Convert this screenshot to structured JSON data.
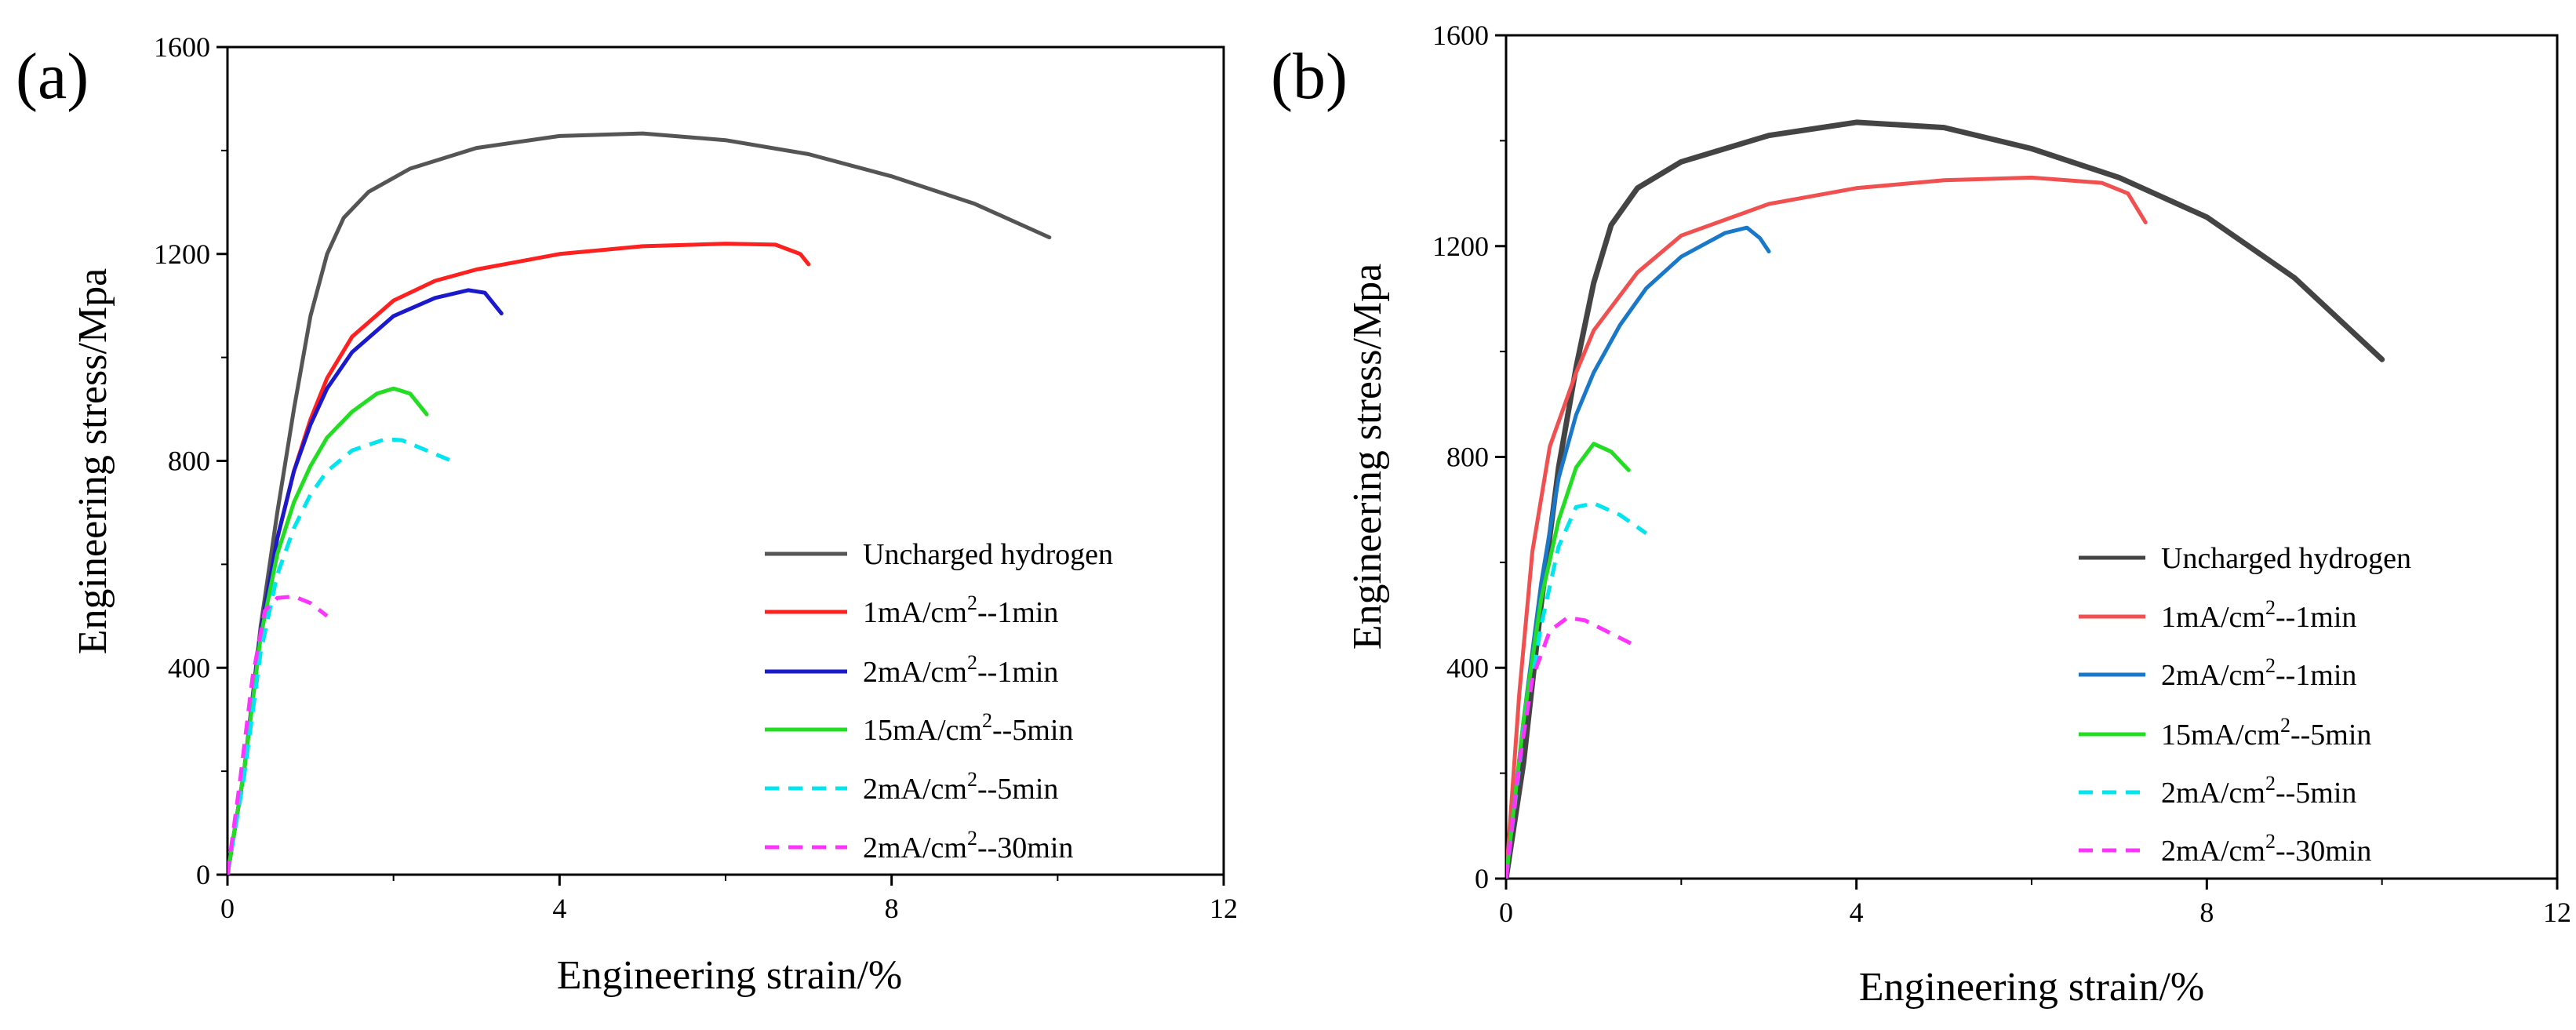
{
  "chart_data": [
    {
      "type": "line",
      "panel_label": "(a)",
      "xlabel": "Engineering strain/%",
      "ylabel": "Engineering stress/Mpa",
      "xlim": [
        0,
        12
      ],
      "ylim": [
        0,
        1600
      ],
      "xticks": [
        0,
        4,
        8,
        12
      ],
      "yticks": [
        0,
        400,
        800,
        1200,
        1600
      ],
      "legend_position": "bottom-right",
      "series": [
        {
          "name": "Uncharged hydrogen",
          "label_parts": [
            "Uncharged hydrogen"
          ],
          "color": "#555555",
          "dash": "solid",
          "points": [
            [
              0,
              0
            ],
            [
              0.2,
              200
            ],
            [
              0.4,
              480
            ],
            [
              0.6,
              700
            ],
            [
              0.8,
              900
            ],
            [
              1.0,
              1080
            ],
            [
              1.2,
              1200
            ],
            [
              1.4,
              1270
            ],
            [
              1.7,
              1320
            ],
            [
              2.2,
              1365
            ],
            [
              3.0,
              1405
            ],
            [
              4.0,
              1428
            ],
            [
              5.0,
              1433
            ],
            [
              6.0,
              1420
            ],
            [
              7.0,
              1393
            ],
            [
              8.0,
              1350
            ],
            [
              9.0,
              1297
            ],
            [
              9.9,
              1232
            ]
          ]
        },
        {
          "name": "1mA/cm2--1min",
          "label_parts": [
            "1mA/cm",
            "2",
            "--1min"
          ],
          "color": "#ff2020",
          "dash": "solid",
          "points": [
            [
              0,
              0
            ],
            [
              0.2,
              200
            ],
            [
              0.4,
              470
            ],
            [
              0.6,
              650
            ],
            [
              0.8,
              780
            ],
            [
              1.0,
              880
            ],
            [
              1.2,
              960
            ],
            [
              1.5,
              1040
            ],
            [
              2.0,
              1110
            ],
            [
              2.5,
              1148
            ],
            [
              3.0,
              1170
            ],
            [
              4.0,
              1200
            ],
            [
              5.0,
              1215
            ],
            [
              6.0,
              1220
            ],
            [
              6.6,
              1218
            ],
            [
              6.9,
              1200
            ],
            [
              7.0,
              1180
            ]
          ]
        },
        {
          "name": "2mA/cm2--1min",
          "label_parts": [
            "2mA/cm",
            "2",
            "--1min"
          ],
          "color": "#1a1acc",
          "dash": "solid",
          "points": [
            [
              0,
              0
            ],
            [
              0.2,
              200
            ],
            [
              0.4,
              470
            ],
            [
              0.6,
              650
            ],
            [
              0.8,
              780
            ],
            [
              1.0,
              870
            ],
            [
              1.2,
              940
            ],
            [
              1.5,
              1010
            ],
            [
              2.0,
              1080
            ],
            [
              2.5,
              1115
            ],
            [
              2.9,
              1130
            ],
            [
              3.1,
              1125
            ],
            [
              3.2,
              1105
            ],
            [
              3.3,
              1085
            ]
          ]
        },
        {
          "name": "15mA/cm2--5min",
          "label_parts": [
            "15mA/cm",
            "2",
            "--5min"
          ],
          "color": "#22dd22",
          "dash": "solid",
          "points": [
            [
              0,
              0
            ],
            [
              0.2,
              200
            ],
            [
              0.4,
              460
            ],
            [
              0.6,
              620
            ],
            [
              0.8,
              720
            ],
            [
              1.0,
              790
            ],
            [
              1.2,
              845
            ],
            [
              1.5,
              895
            ],
            [
              1.8,
              930
            ],
            [
              2.0,
              940
            ],
            [
              2.2,
              930
            ],
            [
              2.4,
              890
            ]
          ]
        },
        {
          "name": "2mA/cm2--5min",
          "label_parts": [
            "2mA/cm",
            "2",
            "--5min"
          ],
          "color": "#00e5ee",
          "dash": "dash",
          "points": [
            [
              0,
              0
            ],
            [
              0.2,
              190
            ],
            [
              0.4,
              430
            ],
            [
              0.6,
              580
            ],
            [
              0.8,
              670
            ],
            [
              1.0,
              735
            ],
            [
              1.2,
              780
            ],
            [
              1.5,
              820
            ],
            [
              1.9,
              842
            ],
            [
              2.1,
              840
            ],
            [
              2.4,
              820
            ],
            [
              2.7,
              800
            ]
          ]
        },
        {
          "name": "2mA/cm2--30min",
          "label_parts": [
            "2mA/cm",
            "2",
            "--30min"
          ],
          "color": "#ff33ff",
          "dash": "dash",
          "points": [
            [
              0,
              0
            ],
            [
              0.15,
              180
            ],
            [
              0.3,
              380
            ],
            [
              0.45,
              510
            ],
            [
              0.6,
              535
            ],
            [
              0.8,
              538
            ],
            [
              1.0,
              525
            ],
            [
              1.2,
              500
            ]
          ]
        }
      ]
    },
    {
      "type": "line",
      "panel_label": "(b)",
      "xlabel": "Engineering strain/%",
      "ylabel": "Engineering stress/Mpa",
      "xlim": [
        0,
        12
      ],
      "ylim": [
        0,
        1600
      ],
      "xticks": [
        0,
        4,
        8,
        12
      ],
      "yticks": [
        0,
        400,
        800,
        1200,
        1600
      ],
      "legend_position": "bottom-right",
      "series": [
        {
          "name": "Uncharged hydrogen",
          "label_parts": [
            "Uncharged hydrogen"
          ],
          "color": "#444444",
          "dash": "solid",
          "points": [
            [
              0,
              0
            ],
            [
              0.2,
              220
            ],
            [
              0.4,
              520
            ],
            [
              0.6,
              780
            ],
            [
              0.8,
              970
            ],
            [
              1.0,
              1130
            ],
            [
              1.2,
              1240
            ],
            [
              1.5,
              1310
            ],
            [
              2.0,
              1360
            ],
            [
              3.0,
              1410
            ],
            [
              4.0,
              1435
            ],
            [
              5.0,
              1425
            ],
            [
              6.0,
              1385
            ],
            [
              7.0,
              1330
            ],
            [
              8.0,
              1255
            ],
            [
              9.0,
              1140
            ],
            [
              10.0,
              985
            ]
          ]
        },
        {
          "name": "1mA/cm2--1min",
          "label_parts": [
            "1mA/cm",
            "2",
            "--1min"
          ],
          "color": "#f05050",
          "dash": "solid",
          "points": [
            [
              0,
              0
            ],
            [
              0.15,
              350
            ],
            [
              0.3,
              620
            ],
            [
              0.5,
              820
            ],
            [
              0.8,
              960
            ],
            [
              1.0,
              1040
            ],
            [
              1.5,
              1150
            ],
            [
              2.0,
              1220
            ],
            [
              3.0,
              1280
            ],
            [
              4.0,
              1310
            ],
            [
              5.0,
              1325
            ],
            [
              6.0,
              1330
            ],
            [
              6.8,
              1320
            ],
            [
              7.1,
              1300
            ],
            [
              7.3,
              1245
            ]
          ]
        },
        {
          "name": "2mA/cm2--1min",
          "label_parts": [
            "2mA/cm",
            "2",
            "--1min"
          ],
          "color": "#1a78c8",
          "dash": "solid",
          "points": [
            [
              0,
              0
            ],
            [
              0.2,
              300
            ],
            [
              0.4,
              560
            ],
            [
              0.6,
              760
            ],
            [
              0.8,
              880
            ],
            [
              1.0,
              960
            ],
            [
              1.3,
              1050
            ],
            [
              1.6,
              1120
            ],
            [
              2.0,
              1180
            ],
            [
              2.5,
              1225
            ],
            [
              2.75,
              1235
            ],
            [
              2.9,
              1215
            ],
            [
              3.0,
              1190
            ]
          ]
        },
        {
          "name": "15mA/cm2--5min",
          "label_parts": [
            "15mA/cm",
            "2",
            "--5min"
          ],
          "color": "#22dd22",
          "dash": "solid",
          "points": [
            [
              0,
              0
            ],
            [
              0.2,
              300
            ],
            [
              0.4,
              530
            ],
            [
              0.6,
              680
            ],
            [
              0.8,
              780
            ],
            [
              1.0,
              825
            ],
            [
              1.2,
              810
            ],
            [
              1.4,
              775
            ]
          ]
        },
        {
          "name": "2mA/cm2--5min",
          "label_parts": [
            "2mA/cm",
            "2",
            "--5min"
          ],
          "color": "#00e5ee",
          "dash": "dash",
          "points": [
            [
              0,
              0
            ],
            [
              0.2,
              280
            ],
            [
              0.4,
              480
            ],
            [
              0.6,
              630
            ],
            [
              0.8,
              705
            ],
            [
              1.0,
              712
            ],
            [
              1.3,
              690
            ],
            [
              1.6,
              655
            ]
          ]
        },
        {
          "name": "2mA/cm2--30min",
          "label_parts": [
            "2mA/cm",
            "2",
            "--30min"
          ],
          "color": "#ff33ff",
          "dash": "dash",
          "points": [
            [
              0,
              0
            ],
            [
              0.15,
              220
            ],
            [
              0.3,
              380
            ],
            [
              0.5,
              470
            ],
            [
              0.7,
              495
            ],
            [
              0.9,
              490
            ],
            [
              1.2,
              465
            ],
            [
              1.5,
              440
            ]
          ]
        }
      ]
    }
  ]
}
